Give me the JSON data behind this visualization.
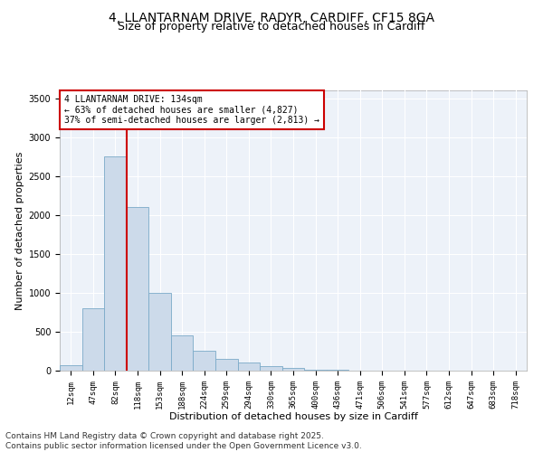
{
  "title_line1": "4, LLANTARNAM DRIVE, RADYR, CARDIFF, CF15 8GA",
  "title_line2": "Size of property relative to detached houses in Cardiff",
  "xlabel": "Distribution of detached houses by size in Cardiff",
  "ylabel": "Number of detached properties",
  "categories": [
    "12sqm",
    "47sqm",
    "82sqm",
    "118sqm",
    "153sqm",
    "188sqm",
    "224sqm",
    "259sqm",
    "294sqm",
    "330sqm",
    "365sqm",
    "400sqm",
    "436sqm",
    "471sqm",
    "506sqm",
    "541sqm",
    "577sqm",
    "612sqm",
    "647sqm",
    "683sqm",
    "718sqm"
  ],
  "values": [
    75,
    800,
    2750,
    2100,
    1000,
    450,
    250,
    155,
    100,
    55,
    30,
    15,
    8,
    4,
    3,
    2,
    1,
    1,
    0,
    0,
    0
  ],
  "bar_color": "#ccdaea",
  "bar_edge_color": "#7aaac8",
  "vline_color": "#cc0000",
  "vline_x_index": 2.5,
  "annotation_text": "4 LLANTARNAM DRIVE: 134sqm\n← 63% of detached houses are smaller (4,827)\n37% of semi-detached houses are larger (2,813) →",
  "annotation_box_color": "#cc0000",
  "ylim": [
    0,
    3600
  ],
  "yticks": [
    0,
    500,
    1000,
    1500,
    2000,
    2500,
    3000,
    3500
  ],
  "background_color": "#edf2f9",
  "footer_text": "Contains HM Land Registry data © Crown copyright and database right 2025.\nContains public sector information licensed under the Open Government Licence v3.0.",
  "title_fontsize": 10,
  "subtitle_fontsize": 9,
  "axis_label_fontsize": 8,
  "tick_fontsize": 7,
  "annotation_fontsize": 7,
  "footer_fontsize": 6.5
}
